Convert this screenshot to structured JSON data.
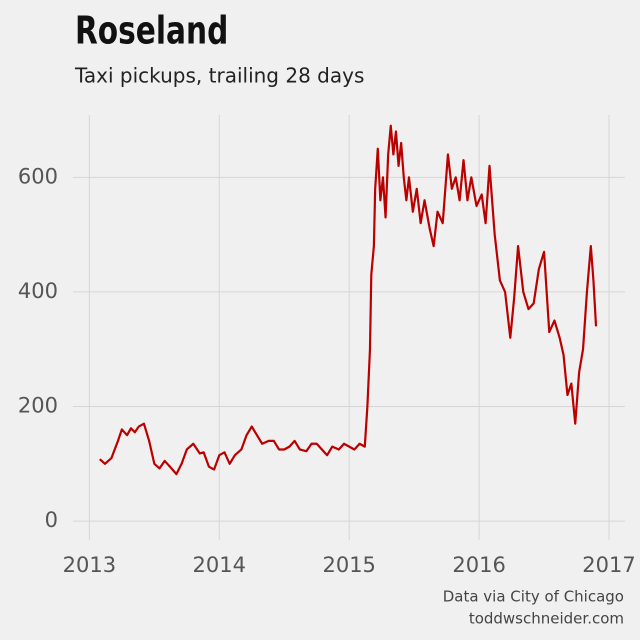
{
  "chart_data": {
    "type": "line",
    "title": "Roseland",
    "subtitle": "Taxi pickups, trailing 28 days",
    "source": "Data via City of Chicago",
    "credit": "toddwschneider.com",
    "color": "#bb0000",
    "grid": true,
    "xlim": [
      2012.72,
      2017.2
    ],
    "xticks": [
      2013,
      2014,
      2015,
      2016,
      2017
    ],
    "ylim": [
      -33,
      735
    ],
    "yticks": [
      0,
      200,
      400,
      600
    ],
    "x": [
      2013.08,
      2013.12,
      2013.17,
      2013.22,
      2013.25,
      2013.29,
      2013.32,
      2013.35,
      2013.38,
      2013.42,
      2013.46,
      2013.5,
      2013.54,
      2013.58,
      2013.62,
      2013.67,
      2013.71,
      2013.75,
      2013.8,
      2013.85,
      2013.88,
      2013.92,
      2013.96,
      2014.0,
      2014.04,
      2014.08,
      2014.12,
      2014.17,
      2014.21,
      2014.25,
      2014.29,
      2014.33,
      2014.38,
      2014.42,
      2014.46,
      2014.5,
      2014.54,
      2014.58,
      2014.62,
      2014.67,
      2014.71,
      2014.75,
      2014.79,
      2014.83,
      2014.87,
      2014.92,
      2014.96,
      2015.0,
      2015.04,
      2015.08,
      2015.12,
      2015.14,
      2015.16,
      2015.17,
      2015.19,
      2015.2,
      2015.22,
      2015.24,
      2015.26,
      2015.28,
      2015.3,
      2015.32,
      2015.34,
      2015.36,
      2015.38,
      2015.4,
      2015.42,
      2015.44,
      2015.46,
      2015.49,
      2015.52,
      2015.55,
      2015.58,
      2015.62,
      2015.65,
      2015.68,
      2015.72,
      2015.76,
      2015.79,
      2015.82,
      2015.85,
      2015.88,
      2015.91,
      2015.94,
      2015.98,
      2016.02,
      2016.05,
      2016.08,
      2016.12,
      2016.16,
      2016.2,
      2016.24,
      2016.27,
      2016.3,
      2016.34,
      2016.38,
      2016.42,
      2016.46,
      2016.5,
      2016.54,
      2016.58,
      2016.62,
      2016.65,
      2016.68,
      2016.71,
      2016.74,
      2016.77,
      2016.8,
      2016.83,
      2016.86,
      2016.88,
      2016.9
    ],
    "values": [
      108,
      100,
      110,
      140,
      160,
      150,
      162,
      155,
      165,
      170,
      140,
      100,
      92,
      105,
      95,
      82,
      100,
      125,
      135,
      118,
      120,
      95,
      90,
      115,
      120,
      100,
      115,
      125,
      150,
      165,
      150,
      135,
      140,
      140,
      125,
      125,
      130,
      140,
      125,
      122,
      135,
      135,
      125,
      115,
      130,
      125,
      135,
      130,
      125,
      135,
      130,
      200,
      300,
      430,
      480,
      580,
      650,
      560,
      600,
      530,
      640,
      690,
      640,
      680,
      620,
      660,
      600,
      560,
      600,
      540,
      580,
      520,
      560,
      510,
      480,
      540,
      520,
      640,
      580,
      600,
      560,
      630,
      560,
      600,
      550,
      570,
      520,
      620,
      500,
      420,
      400,
      320,
      390,
      480,
      400,
      370,
      380,
      440,
      470,
      330,
      350,
      320,
      290,
      220,
      240,
      170,
      260,
      300,
      400,
      480,
      420,
      340
    ]
  }
}
